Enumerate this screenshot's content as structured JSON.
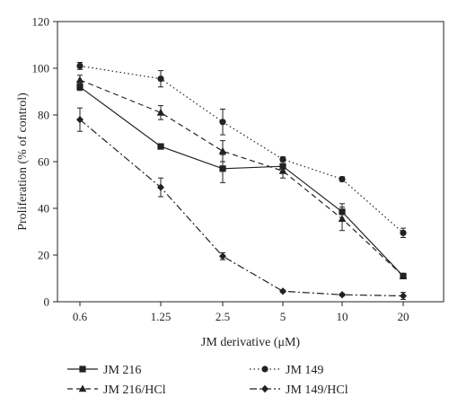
{
  "chart_data": {
    "type": "line",
    "title": "",
    "xlabel": "JM derivative (μM)",
    "ylabel": "Proliferation (% of control)",
    "categories": [
      "0.6",
      "1.25",
      "2.5",
      "5",
      "10",
      "20"
    ],
    "ylim": [
      0,
      120
    ],
    "yticks": [
      0,
      20,
      40,
      60,
      80,
      100,
      120
    ],
    "grid": false,
    "legend_position": "bottom",
    "series": [
      {
        "name": "JM 216",
        "marker": "square",
        "dash": "solid",
        "values": [
          92,
          66.5,
          57,
          58,
          38.5,
          11
        ],
        "errors": [
          1.5,
          1,
          6,
          2,
          3.5,
          1
        ]
      },
      {
        "name": "JM 216/HCl",
        "marker": "triangle",
        "dash": "dashed",
        "values": [
          95,
          81,
          64.5,
          56,
          35.5,
          11
        ],
        "errors": [
          2,
          3,
          4.5,
          3,
          5,
          1
        ]
      },
      {
        "name": "JM 149",
        "marker": "circle",
        "dash": "dotted",
        "values": [
          101,
          95.5,
          77,
          61,
          52.5,
          29.5
        ],
        "errors": [
          1.5,
          3.5,
          5.5,
          1,
          1,
          2
        ]
      },
      {
        "name": "JM 149/HCl",
        "marker": "diamond",
        "dash": "dashdot",
        "values": [
          78,
          49,
          19.5,
          4.5,
          3,
          2.5
        ],
        "errors": [
          5,
          4,
          1.5,
          0.5,
          0.5,
          1.5
        ]
      }
    ]
  }
}
